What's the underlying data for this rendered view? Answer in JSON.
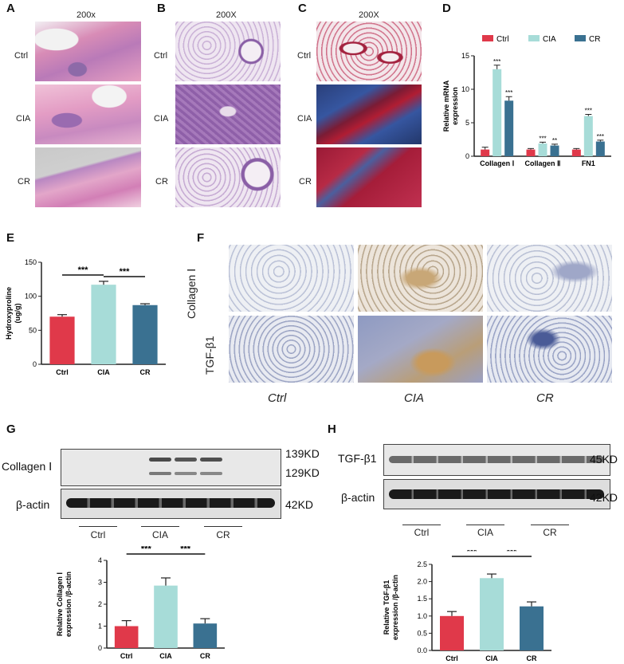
{
  "panels": {
    "A": {
      "letter": "A",
      "mag": "200x",
      "rows": [
        "Ctrl",
        "CIA",
        "CR"
      ]
    },
    "B": {
      "letter": "B",
      "mag": "200X",
      "rows": [
        "Ctrl",
        "CIA",
        "CR"
      ]
    },
    "C": {
      "letter": "C",
      "mag": "200X",
      "rows": [
        "Ctrl",
        "CIA",
        "CR"
      ]
    },
    "D": {
      "letter": "D"
    },
    "E": {
      "letter": "E"
    },
    "F": {
      "letter": "F",
      "rows": [
        "Collagen Ⅰ",
        "TGF-β1"
      ],
      "cols": [
        "Ctrl",
        "CIA",
        "CR"
      ]
    },
    "G": {
      "letter": "G",
      "blot1": "Collagen Ⅰ",
      "blot2": "β-actin",
      "kd1": "139KD",
      "kd2": "129KD",
      "kd3": "42KD",
      "groups": [
        "Ctrl",
        "CIA",
        "CR"
      ]
    },
    "H": {
      "letter": "H",
      "blot1": "TGF-β1",
      "blot2": "β-actin",
      "kd1": "45KD",
      "kd2": "42KD",
      "groups": [
        "Ctrl",
        "CIA",
        "CR"
      ]
    }
  },
  "colors": {
    "ctrl": "#e0394a",
    "cia": "#a7dcd8",
    "cr": "#3a7191"
  },
  "chart_data": [
    {
      "id": "D",
      "type": "bar",
      "categories": [
        "Collagen Ⅰ",
        "Collagen Ⅱ",
        "FN1"
      ],
      "series": [
        {
          "name": "Ctrl",
          "values": [
            1.0,
            1.0,
            1.0
          ],
          "errors": [
            0.35,
            0.15,
            0.15
          ]
        },
        {
          "name": "CIA",
          "values": [
            13.0,
            1.9,
            6.0
          ],
          "errors": [
            0.6,
            0.2,
            0.25
          ]
        },
        {
          "name": "CR",
          "values": [
            8.3,
            1.6,
            2.2
          ],
          "errors": [
            0.6,
            0.2,
            0.2
          ]
        }
      ],
      "annotations": [
        [
          "",
          "***",
          "***"
        ],
        [
          "",
          "***",
          "**"
        ],
        [
          "",
          "***",
          "***"
        ]
      ],
      "ylabel": "Relative mRNA expression",
      "ylim": [
        0,
        15
      ],
      "yticks": [
        0,
        5,
        10,
        15
      ],
      "legend": "top"
    },
    {
      "id": "E",
      "type": "bar",
      "categories": [
        "Ctrl",
        "CIA",
        "CR"
      ],
      "values": [
        70,
        117,
        87
      ],
      "errors": [
        3,
        5,
        2
      ],
      "ylabel": "Hydroxyproline (ug/g)",
      "ylim": [
        0,
        150
      ],
      "yticks": [
        0,
        50,
        100,
        150
      ],
      "significance": [
        [
          "Ctrl",
          "CIA",
          "***"
        ],
        [
          "CIA",
          "CR",
          "***"
        ]
      ]
    },
    {
      "id": "G",
      "type": "bar",
      "categories": [
        "Ctrl",
        "CIA",
        "CR"
      ],
      "values": [
        1.0,
        2.85,
        1.12
      ],
      "errors": [
        0.25,
        0.35,
        0.22
      ],
      "ylabel": "Relative Collagen Ⅰ expression /β-actin",
      "ylim": [
        0,
        4
      ],
      "yticks": [
        0,
        1,
        2,
        3,
        4
      ],
      "significance": [
        [
          "Ctrl",
          "CIA",
          "***"
        ],
        [
          "CIA",
          "CR",
          "***"
        ]
      ]
    },
    {
      "id": "H",
      "type": "bar",
      "categories": [
        "Ctrl",
        "CIA",
        "CR"
      ],
      "values": [
        1.0,
        2.1,
        1.28
      ],
      "errors": [
        0.13,
        0.12,
        0.13
      ],
      "ylabel": "Relative TGF-β1 expression /β-actin",
      "ylim": [
        0,
        2.5
      ],
      "yticks": [
        0.0,
        0.5,
        1.0,
        1.5,
        2.0,
        2.5
      ],
      "tickdigits": 1,
      "significance": [
        [
          "Ctrl",
          "CIA",
          "***"
        ],
        [
          "CIA",
          "CR",
          "***"
        ]
      ]
    }
  ]
}
